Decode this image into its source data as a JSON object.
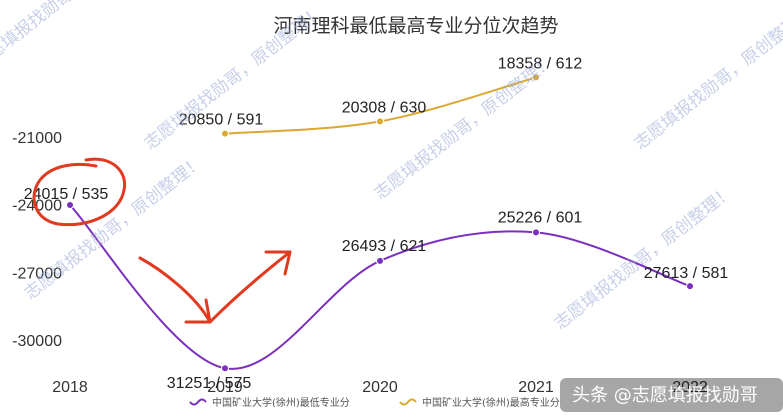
{
  "chart_data": {
    "type": "line",
    "title": "河南理科最低最高专业分位次趋势",
    "categories": [
      "2018",
      "2019",
      "2020",
      "2021",
      "2022"
    ],
    "y_ticks": [
      "-21000",
      "-24000",
      "-27000",
      "-30000"
    ],
    "ylim": [
      -31500,
      -18500
    ],
    "grid": false,
    "legend_position": "bottom",
    "series": [
      {
        "name": "中国矿业大学(徐州)最低专业分",
        "color": "#7b2fbf",
        "values": [
          -24015,
          -31251,
          -26493,
          -25226,
          -27613
        ],
        "labels": [
          "24015 / 535",
          "31251 / 575",
          "26493 / 621",
          "25226 / 601",
          "27613 / 581"
        ]
      },
      {
        "name": "中国矿业大学(徐州)最高专业分",
        "color": "#d9a930",
        "values": [
          null,
          -20850,
          -20308,
          -18358,
          null
        ],
        "labels": [
          "",
          "20850 / 591",
          "20308 / 630",
          "18358 / 612",
          ""
        ]
      }
    ]
  },
  "watermark": "志愿填报找勋哥，原创整理！",
  "credit": "头条 @志愿填报找勋哥",
  "annotation_color": "#e03a20"
}
